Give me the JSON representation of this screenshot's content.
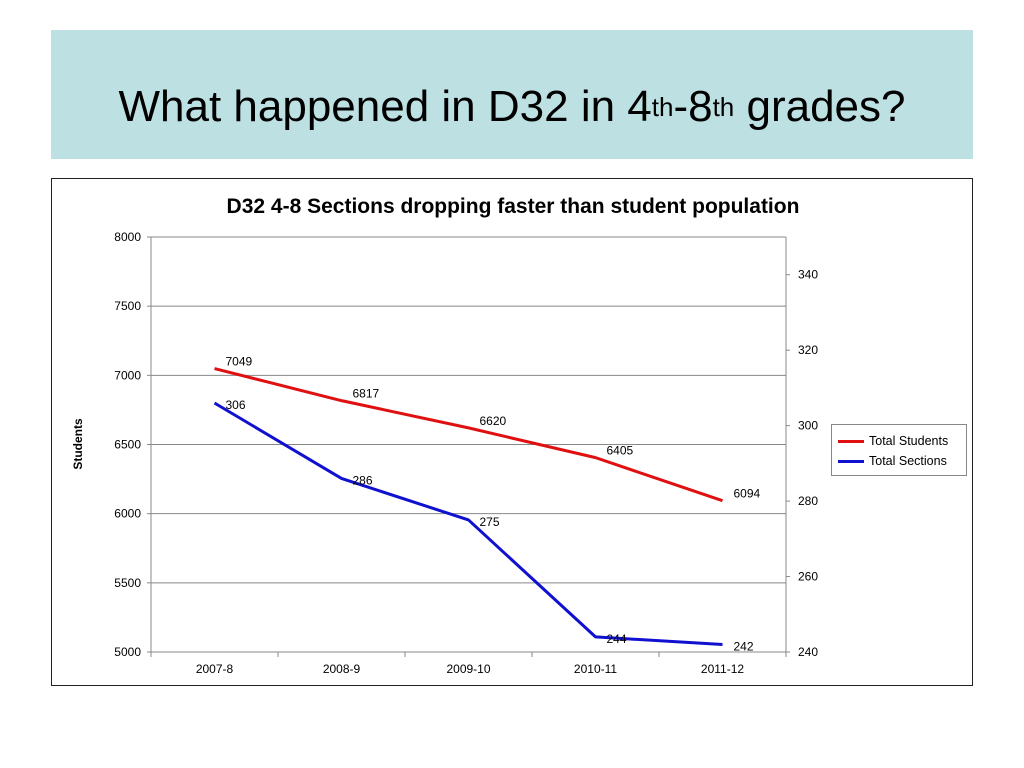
{
  "slide": {
    "title_main": "What happened in D32 in 4",
    "title_sup1": "th",
    "title_mid": "-8",
    "title_sup2": "th",
    "title_end": " grades?"
  },
  "colors": {
    "title_band": "#bde0e3",
    "students_line": "#e01010",
    "sections_line": "#1010d0",
    "gridline": "#888888"
  },
  "chart_data": {
    "type": "line",
    "title": "D32 4-8 Sections dropping faster than student population",
    "categories": [
      "2007-8",
      "2008-9",
      "2009-10",
      "2010-11",
      "2011-12"
    ],
    "ylabel": "Students",
    "ylabel_right": "",
    "ylim": [
      5000,
      8000
    ],
    "yticks": [
      5000,
      5500,
      6000,
      6500,
      7000,
      7500,
      8000
    ],
    "y2lim": [
      240,
      350
    ],
    "y2ticks": [
      240,
      260,
      280,
      300,
      320,
      340
    ],
    "grid": "horizontal",
    "legend_position": "right",
    "series": [
      {
        "name": "Total Students",
        "axis": "left",
        "color": "#e01010",
        "values": [
          7049,
          6817,
          6620,
          6405,
          6094
        ]
      },
      {
        "name": "Total Sections",
        "axis": "right",
        "color": "#1010d0",
        "values": [
          306,
          286,
          275,
          244,
          242
        ]
      }
    ]
  }
}
